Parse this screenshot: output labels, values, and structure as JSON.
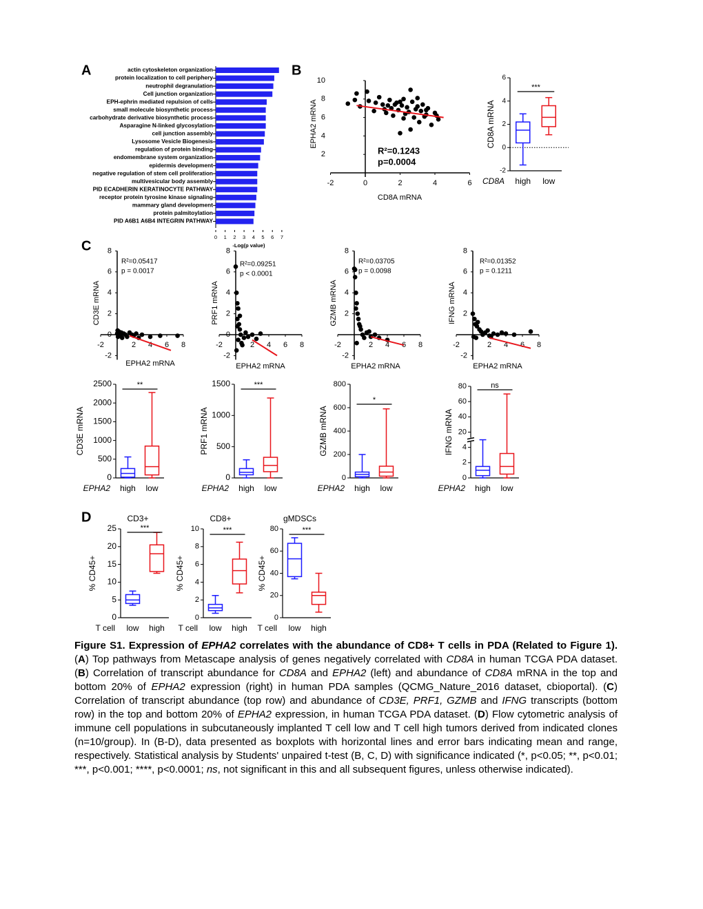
{
  "panel_labels": [
    "A",
    "B",
    "C",
    "D"
  ],
  "chart_data": [
    {
      "type": "bar",
      "orientation": "horizontal",
      "color": "#2323f0",
      "categories": [
        "actin cytoskeleton organization",
        "protein localization to cell periphery",
        "neutrophil degranulation",
        "Cell junction organization",
        "EPH-ephrin mediated repulsion of cells",
        "small molecule biosynthetic process",
        "carbohydrate derivative biosynthetic process",
        "Asparagine N-linked glycosylation",
        "cell junction assembly",
        "Lysosome Vesicle Biogenesis",
        "regulation of protein binding",
        "endomembrane system organization",
        "epidermis development",
        "negative regulation of stem cell proliferation",
        "multivesicular body assembly",
        "PID ECADHERIN KERATINOCYTE PATHWAY",
        "receptor protein tyrosine kinase signaling",
        "mammary gland development",
        "protein palmitoylation",
        "PID A6B1 A6B4 INTEGRIN PATHWAY"
      ],
      "values": [
        6.7,
        6.2,
        6.1,
        6.0,
        5.4,
        5.3,
        5.3,
        5.3,
        5.2,
        5.1,
        4.8,
        4.7,
        4.5,
        4.4,
        4.4,
        4.4,
        4.3,
        4.2,
        4.1,
        4.0
      ],
      "xlim": [
        0,
        7
      ],
      "xticks": [
        0,
        1,
        2,
        3,
        4,
        5,
        6,
        7
      ],
      "xlabel": "-Log(p value)"
    },
    {
      "type": "scatter",
      "xlabel": "CD8A mRNA",
      "ylabel": "EPHA2 mRNA",
      "x": [
        -1,
        -0.5,
        -0.3,
        0.2,
        0.5,
        0.8,
        1.0,
        1.2,
        1.4,
        1.5,
        1.6,
        1.8,
        1.9,
        2.0,
        2.1,
        2.2,
        2.3,
        2.4,
        2.5,
        2.6,
        2.7,
        2.8,
        2.9,
        3.0,
        3.1,
        3.2,
        3.3,
        3.4,
        3.5,
        3.6,
        3.8,
        4.0,
        4.2,
        0.1,
        0.6,
        1.1,
        1.7,
        2.2,
        2.6,
        3.0,
        3.5,
        2.0,
        -0.6,
        4.1,
        1.3
      ],
      "y": [
        7.5,
        8.6,
        7.2,
        7.8,
        6.7,
        8.2,
        7.4,
        6.5,
        7.9,
        7.0,
        6.2,
        7.6,
        6.8,
        4.3,
        7.3,
        8.0,
        6.4,
        7.1,
        6.6,
        9.0,
        7.7,
        6.0,
        6.9,
        7.2,
        5.5,
        6.7,
        7.4,
        6.1,
        6.3,
        7.0,
        5.2,
        6.5,
        5.8,
        8.8,
        7.6,
        6.9,
        7.4,
        5.9,
        4.7,
        8.1,
        6.8,
        7.7,
        7.9,
        6.2,
        7.3
      ],
      "fit": {
        "color": "#e8151b",
        "x": [
          -0.5,
          4.5
        ],
        "y": [
          7.3,
          6.0
        ]
      },
      "annotations": [
        "R²=0.1243",
        "p=0.0004"
      ],
      "xlim": [
        -2,
        6
      ],
      "ylim": [
        0,
        10
      ],
      "xticks": [
        -2,
        0,
        2,
        4,
        6
      ],
      "yticks": [
        2,
        4,
        6,
        8,
        10
      ]
    },
    {
      "type": "box",
      "ylabel": "CD8A mRNA",
      "group_label": "CD8A",
      "categories": [
        "high",
        "low"
      ],
      "colors": [
        "#1a1aff",
        "#e8151b"
      ],
      "min": [
        -1.5,
        1.1
      ],
      "q1": [
        0.4,
        1.8
      ],
      "median": [
        1.5,
        2.6
      ],
      "q3": [
        2.2,
        3.6
      ],
      "max": [
        2.9,
        4.3
      ],
      "significance": "***",
      "zero_line": true,
      "ylim": [
        -2,
        6
      ],
      "yticks": [
        -2,
        0,
        2,
        4,
        6
      ]
    },
    {
      "type": "scatter",
      "xlabel": "EPHA2 mRNA",
      "ylabel": "CD3E mRNA",
      "x": [
        0,
        0.1,
        0.2,
        0.3,
        0.4,
        0.5,
        0.6,
        0.8,
        1.0,
        1.2,
        1.5,
        1.8,
        2.0,
        2.3,
        2.6,
        3.0,
        4.0,
        5.2,
        7.3,
        0.05
      ],
      "y": [
        0.1,
        -0.2,
        0.3,
        0,
        -0.1,
        0.2,
        -0.3,
        0.1,
        0,
        -0.2,
        0.2,
        0,
        -0.1,
        0.1,
        -0.3,
        0,
        -0.2,
        -0.1,
        -0.1,
        0.4
      ],
      "fit": {
        "color": "#e8151b",
        "x": [
          1.5,
          6.5
        ],
        "y": [
          -0.1,
          -1.5
        ]
      },
      "annotations": [
        "R²=0.05417",
        "p = 0.0017"
      ],
      "xlim": [
        -2,
        8
      ],
      "ylim": [
        -2,
        8
      ],
      "xticks": [
        -2,
        2,
        4,
        6,
        8
      ],
      "yticks": [
        -2,
        0,
        2,
        4,
        6,
        8
      ]
    },
    {
      "type": "scatter",
      "xlabel": "EPHA2 mRNA",
      "ylabel": "PRF1 mRNA",
      "x": [
        0,
        0.1,
        0.2,
        0.3,
        0.2,
        0.4,
        0.5,
        0.6,
        0.3,
        0.8,
        1.0,
        1.2,
        0.1,
        0.5,
        1.5,
        2.0,
        2.5,
        0.2,
        0.7,
        3.0
      ],
      "y": [
        6.5,
        4.0,
        3.0,
        2.5,
        1.5,
        1.0,
        0.5,
        0,
        -0.5,
        -1.0,
        -0.3,
        0.2,
        -1.5,
        1.8,
        -0.2,
        0,
        -0.4,
        0.8,
        -0.8,
        0.1
      ],
      "fit": {
        "color": "#e8151b",
        "x": [
          2,
          5
        ],
        "y": [
          -0.5,
          -2
        ]
      },
      "annotations": [
        "R²=0.09251",
        "p < 0.0001"
      ],
      "xlim": [
        -2,
        8
      ],
      "ylim": [
        -2,
        8
      ],
      "xticks": [
        -2,
        2,
        4,
        6,
        8
      ],
      "yticks": [
        -2,
        0,
        2,
        4,
        6,
        8
      ]
    },
    {
      "type": "scatter",
      "xlabel": "EPHA2 mRNA",
      "ylabel": "GZMB mRNA",
      "x": [
        0,
        0.1,
        0.1,
        0.2,
        0.3,
        0.4,
        0.5,
        0.6,
        0.8,
        1.0,
        1.2,
        1.5,
        2.0,
        2.5,
        3.0,
        0.3,
        0.7,
        0.2,
        4.0,
        1.8
      ],
      "y": [
        6.3,
        6.2,
        5.5,
        4.0,
        3.0,
        2.0,
        1.5,
        1.0,
        0.5,
        0,
        -0.3,
        0.2,
        -0.2,
        0,
        -0.3,
        -0.8,
        0.8,
        2.5,
        -0.5,
        0.3
      ],
      "fit": {
        "color": "#e8151b",
        "x": [
          2,
          6
        ],
        "y": [
          -0.2,
          -1
        ]
      },
      "annotations": [
        "R²=0.03705",
        "p = 0.0098"
      ],
      "xlim": [
        -2,
        8
      ],
      "ylim": [
        -2,
        8
      ],
      "xticks": [
        -2,
        2,
        4,
        6,
        8
      ],
      "yticks": [
        -2,
        2,
        4,
        6,
        8
      ]
    },
    {
      "type": "scatter",
      "xlabel": "EPHA2 mRNA",
      "ylabel": "IFNG mRNA",
      "x": [
        0,
        0.2,
        0.3,
        0.5,
        0.8,
        1.0,
        1.2,
        1.5,
        2.0,
        2.5,
        3.0,
        4.0,
        5.0,
        7.0,
        0.4,
        0.6,
        1.8,
        0.1,
        2.2,
        3.5
      ],
      "y": [
        2.0,
        1.5,
        1.0,
        0.8,
        0.5,
        0.3,
        0,
        0.2,
        -0.1,
        0.1,
        0,
        0.1,
        0,
        0.3,
        -0.3,
        1.2,
        0.4,
        -0.2,
        -0.2,
        0.2
      ],
      "fit": {
        "color": "#e8151b",
        "x": [
          2,
          7
        ],
        "y": [
          -0.3,
          -1.3
        ]
      },
      "annotations": [
        "R²=0.01352",
        "p = 0.1211"
      ],
      "xlim": [
        -2,
        8
      ],
      "ylim": [
        -2,
        8
      ],
      "xticks": [
        -2,
        2,
        4,
        6,
        8
      ],
      "yticks": [
        -2,
        2,
        4,
        6,
        8
      ]
    },
    {
      "type": "box",
      "ylabel": "CD3E mRNA",
      "group_label": "EPHA2",
      "categories": [
        "high",
        "low"
      ],
      "colors": [
        "#1a1aff",
        "#e8151b"
      ],
      "min": [
        0,
        0
      ],
      "q1": [
        20,
        80
      ],
      "median": [
        120,
        300
      ],
      "q3": [
        250,
        850
      ],
      "max": [
        560,
        2280
      ],
      "significance": "**",
      "ylim": [
        0,
        2500
      ],
      "yticks": [
        0,
        500,
        1000,
        1500,
        2000,
        2500
      ]
    },
    {
      "type": "box",
      "ylabel": "PRF1 mRNA",
      "group_label": "EPHA2",
      "categories": [
        "high",
        "low"
      ],
      "colors": [
        "#1a1aff",
        "#e8151b"
      ],
      "min": [
        0,
        0
      ],
      "q1": [
        50,
        100
      ],
      "median": [
        90,
        200
      ],
      "q3": [
        150,
        330
      ],
      "max": [
        290,
        1280
      ],
      "significance": "***",
      "ylim": [
        0,
        1500
      ],
      "yticks": [
        0,
        500,
        1000,
        1500
      ]
    },
    {
      "type": "box",
      "ylabel": "GZMB mRNA",
      "group_label": "EPHA2",
      "categories": [
        "high",
        "low"
      ],
      "colors": [
        "#1a1aff",
        "#e8151b"
      ],
      "min": [
        0,
        0
      ],
      "q1": [
        10,
        15
      ],
      "median": [
        30,
        50
      ],
      "q3": [
        50,
        100
      ],
      "max": [
        200,
        590
      ],
      "significance": "*",
      "ylim": [
        0,
        800
      ],
      "yticks": [
        0,
        200,
        400,
        600,
        800
      ]
    },
    {
      "type": "box",
      "ylabel": "IFNG mRNA",
      "group_label": "EPHA2",
      "categories": [
        "high",
        "low"
      ],
      "colors": [
        "#1a1aff",
        "#e8151b"
      ],
      "min": [
        0,
        0
      ],
      "q1": [
        0.3,
        0.5
      ],
      "median": [
        1,
        1.5
      ],
      "q3": [
        1.5,
        3.2
      ],
      "max": [
        12,
        70
      ],
      "significance": "ns",
      "ybreak": true,
      "ylim": [
        0,
        80
      ],
      "yticks": [
        0,
        2,
        4,
        20,
        40,
        60,
        80
      ]
    },
    {
      "type": "box",
      "title": "CD3+",
      "ylabel": "% CD45+",
      "group_label": "T cell",
      "categories": [
        "low",
        "high"
      ],
      "colors": [
        "#1a1aff",
        "#e8151b"
      ],
      "min": [
        3.5,
        12.5
      ],
      "q1": [
        4,
        13
      ],
      "median": [
        5,
        18
      ],
      "q3": [
        6.5,
        20.5
      ],
      "max": [
        7.5,
        24
      ],
      "significance": "***",
      "ylim": [
        0,
        25
      ],
      "yticks": [
        0,
        5,
        10,
        15,
        20,
        25
      ]
    },
    {
      "type": "box",
      "title": "CD8+",
      "ylabel": "% CD45+",
      "group_label": "T cell",
      "categories": [
        "low",
        "high"
      ],
      "colors": [
        "#1a1aff",
        "#e8151b"
      ],
      "min": [
        0.5,
        2.8
      ],
      "q1": [
        0.8,
        3.8
      ],
      "median": [
        1.1,
        5.3
      ],
      "q3": [
        1.5,
        6.6
      ],
      "max": [
        2.5,
        8.5
      ],
      "significance": "***",
      "ylim": [
        0,
        10
      ],
      "yticks": [
        0,
        2,
        4,
        6,
        8,
        10
      ]
    },
    {
      "type": "box",
      "title": "gMDSCs",
      "ylabel": "% CD45+",
      "group_label": "T cell",
      "categories": [
        "low",
        "high"
      ],
      "colors": [
        "#1a1aff",
        "#e8151b"
      ],
      "min": [
        35,
        5
      ],
      "q1": [
        37,
        12
      ],
      "median": [
        53,
        20
      ],
      "q3": [
        67,
        23
      ],
      "max": [
        72,
        40
      ],
      "significance": "***",
      "ylim": [
        0,
        80
      ],
      "yticks": [
        0,
        20,
        40,
        60,
        80
      ]
    }
  ],
  "caption": [
    {
      "text": "Figure S1. Expression of ",
      "style": "b"
    },
    {
      "text": "EPHA2",
      "style": "bi"
    },
    {
      "text": " correlates with the abundance of CD8+ T cells in PDA (Related to Figure 1).",
      "style": "b"
    },
    {
      "text": " (",
      "style": ""
    },
    {
      "text": "A",
      "style": "b"
    },
    {
      "text": ") Top pathways from Metascape analysis of genes negatively correlated with ",
      "style": ""
    },
    {
      "text": "CD8A",
      "style": "i"
    },
    {
      "text": " in human TCGA PDA dataset. (",
      "style": ""
    },
    {
      "text": "B",
      "style": "b"
    },
    {
      "text": ") Correlation of transcript abundance for ",
      "style": ""
    },
    {
      "text": "CD8A",
      "style": "i"
    },
    {
      "text": " and ",
      "style": ""
    },
    {
      "text": "EPHA2",
      "style": "i"
    },
    {
      "text": " (left) and abundance of ",
      "style": ""
    },
    {
      "text": "CD8A",
      "style": "i"
    },
    {
      "text": " mRNA in the top and bottom 20% of ",
      "style": ""
    },
    {
      "text": "EPHA2",
      "style": "i"
    },
    {
      "text": " expression (right) in human PDA samples (QCMG_Nature_2016 dataset, cbioportal). (",
      "style": ""
    },
    {
      "text": "C",
      "style": "b"
    },
    {
      "text": ") Correlation of transcript abundance (top row) and abundance of ",
      "style": ""
    },
    {
      "text": "CD3E, PRF1, GZMB",
      "style": "i"
    },
    {
      "text": " and ",
      "style": ""
    },
    {
      "text": "IFNG",
      "style": "i"
    },
    {
      "text": " transcripts (bottom row) in the top and bottom 20% of ",
      "style": ""
    },
    {
      "text": "EPHA2",
      "style": "i"
    },
    {
      "text": " expression, in human TCGA PDA dataset. (",
      "style": ""
    },
    {
      "text": "D",
      "style": "b"
    },
    {
      "text": ") Flow cytometric analysis of immune cell populations in subcutaneously implanted T cell low and T cell high tumors derived from indicated clones (n=10/group). In (B-D), data presented as boxplots with horizontal lines and error bars indicating mean and range, respectively. Statistical analysis by Students' unpaired t-test (B, C, D) with significance indicated (*, p<0.05; **, p<0.01; ***, p<0.001; ****, p<0.0001; ",
      "style": ""
    },
    {
      "text": "ns",
      "style": "i"
    },
    {
      "text": ", not significant in this and all subsequent figures, unless otherwise indicated).",
      "style": ""
    }
  ]
}
